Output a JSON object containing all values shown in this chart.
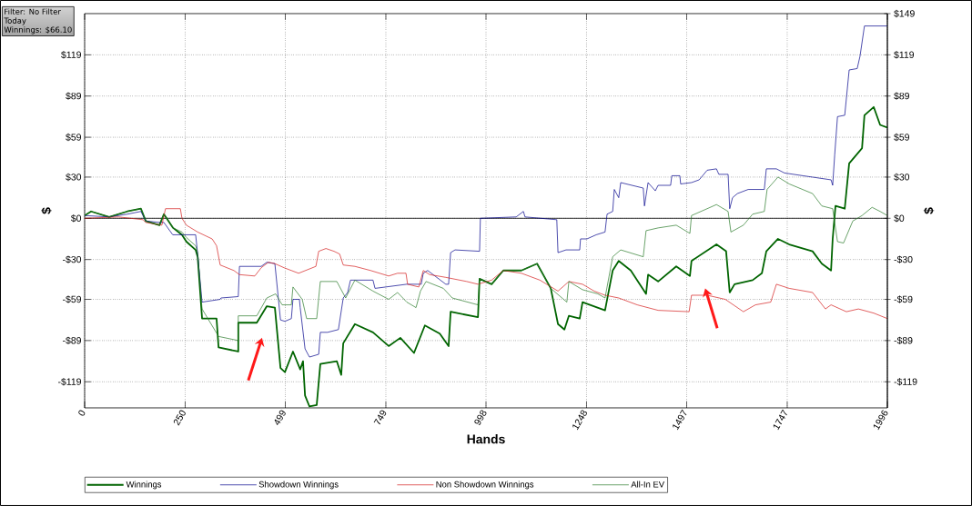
{
  "chart_data": {
    "type": "line",
    "xlabel": "Hands",
    "ylabel": "$",
    "y2label": "$",
    "annotations": [
      "Filter: No Filter",
      "Today",
      "Winnings: $66.10"
    ],
    "xlim": [
      0,
      1996
    ],
    "xticks": [
      0,
      250,
      499,
      749,
      998,
      1248,
      1497,
      1747,
      1996
    ],
    "ylim": [
      -138,
      149
    ],
    "yticks": [
      {
        "value": -119,
        "label": "-$119"
      },
      {
        "value": -89,
        "label": "-$89"
      },
      {
        "value": -59,
        "label": "-$59"
      },
      {
        "value": -30,
        "label": "-$30"
      },
      {
        "value": 0,
        "label": "$0"
      },
      {
        "value": 30,
        "label": "$30"
      },
      {
        "value": 59,
        "label": "$59"
      },
      {
        "value": 89,
        "label": "$89"
      },
      {
        "value": 119,
        "label": "$119"
      }
    ],
    "y2lim": [
      -138,
      149
    ],
    "y2ticks": [
      {
        "value": -119,
        "label": "-$119"
      },
      {
        "value": -89,
        "label": "-$89"
      },
      {
        "value": -59,
        "label": "-$59"
      },
      {
        "value": -30,
        "label": "-$30"
      },
      {
        "value": 0,
        "label": "$0"
      },
      {
        "value": 30,
        "label": "$30"
      },
      {
        "value": 59,
        "label": "$59"
      },
      {
        "value": 89,
        "label": "$89"
      },
      {
        "value": 119,
        "label": "$119"
      },
      {
        "value": 149,
        "label": "$149"
      }
    ],
    "grid": true,
    "legend": "bottom",
    "ref_lines": [
      {
        "axis": "y",
        "value": 0,
        "color": "#000000"
      }
    ],
    "series": [
      {
        "name": "Winnings",
        "color": "#006400",
        "x": [
          0,
          16,
          61,
          106,
          140,
          152,
          186,
          197,
          220,
          242,
          253,
          276,
          281,
          292,
          328,
          333,
          382,
          382,
          428,
          453,
          473,
          487,
          498,
          518,
          536,
          543,
          548,
          559,
          577,
          586,
          627,
          638,
          643,
          672,
          717,
          756,
          785,
          819,
          846,
          883,
          905,
          910,
          978,
          982,
          1012,
          1041,
          1086,
          1125,
          1159,
          1177,
          1193,
          1204,
          1231,
          1238,
          1294,
          1313,
          1328,
          1358,
          1396,
          1401,
          1426,
          1471,
          1505,
          1509,
          1571,
          1595,
          1604,
          1616,
          1661,
          1684,
          1695,
          1724,
          1752,
          1810,
          1833,
          1856,
          1860,
          1867,
          1890,
          1901,
          1933,
          1939,
          1962,
          1978,
          1996
        ],
        "values": [
          2,
          5,
          1,
          5,
          7,
          -2,
          -5,
          3,
          -7,
          -12,
          -17,
          -23,
          -28,
          -73,
          -73,
          -94,
          -97,
          -76,
          -76,
          -64,
          -65,
          -109,
          -112,
          -97,
          -110,
          -104,
          -129,
          -137,
          -136,
          -106,
          -104,
          -114,
          -91,
          -77,
          -83,
          -93,
          -87,
          -98,
          -78,
          -84,
          -93,
          -68,
          -72,
          -44,
          -48,
          -38,
          -38,
          -33,
          -51,
          -77,
          -81,
          -71,
          -73,
          -61,
          -67,
          -38,
          -31,
          -38,
          -55,
          -41,
          -46,
          -35,
          -42,
          -31,
          -19,
          -24,
          -54,
          -48,
          -45,
          -40,
          -24,
          -15,
          -19,
          -24,
          -33,
          -38,
          -15,
          9,
          7,
          40,
          51,
          75,
          81,
          68,
          66
        ]
      },
      {
        "name": "Showdown Winnings",
        "color": "#00008b",
        "x": [
          0,
          61,
          106,
          140,
          152,
          186,
          197,
          219,
          276,
          281,
          292,
          337,
          339,
          382,
          385,
          439,
          453,
          473,
          487,
          498,
          514,
          518,
          534,
          536,
          548,
          559,
          582,
          586,
          604,
          631,
          643,
          654,
          661,
          717,
          722,
          801,
          837,
          842,
          853,
          898,
          905,
          910,
          921,
          982,
          984,
          1073,
          1091,
          1095,
          1174,
          1177,
          1197,
          1231,
          1233,
          1249,
          1272,
          1294,
          1299,
          1313,
          1317,
          1328,
          1333,
          1389,
          1392,
          1401,
          1419,
          1426,
          1457,
          1460,
          1480,
          1482,
          1509,
          1528,
          1548,
          1571,
          1577,
          1600,
          1604,
          1611,
          1623,
          1650,
          1690,
          1695,
          1720,
          1740,
          1786,
          1856,
          1860,
          1865,
          1872,
          1890,
          1901,
          1921,
          1928,
          1939,
          1958,
          1978,
          1979,
          1996
        ],
        "values": [
          2,
          1,
          3,
          5,
          -2,
          -3,
          -3,
          -12,
          -12,
          -26,
          -61,
          -59,
          -58,
          -57,
          -35,
          -35,
          -32,
          -33,
          -74,
          -75,
          -73,
          -59,
          -59,
          -65,
          -95,
          -101,
          -99,
          -83,
          -83,
          -81,
          -58,
          -54,
          -45,
          -45,
          -51,
          -48,
          -48,
          -40,
          -38,
          -48,
          -48,
          -25,
          -23,
          -24,
          0,
          1,
          5,
          1,
          -1,
          -25,
          -23,
          -23,
          -15,
          -15,
          -12,
          -10,
          3,
          5,
          21,
          15,
          26,
          22,
          9,
          26,
          20,
          24,
          24,
          31,
          31,
          25,
          26,
          28,
          35,
          36,
          32,
          32,
          7,
          15,
          18,
          21,
          21,
          36,
          36,
          33,
          31,
          28,
          24,
          46,
          74,
          75,
          108,
          109,
          118,
          140,
          null,
          null,
          140,
          140
        ]
      },
      {
        "name": "Non Showdown Winnings",
        "color": "#d41c1c",
        "x": [
          0,
          84,
          145,
          152,
          192,
          201,
          238,
          242,
          253,
          281,
          317,
          328,
          337,
          371,
          385,
          423,
          439,
          457,
          473,
          496,
          514,
          532,
          575,
          582,
          600,
          620,
          634,
          643,
          672,
          711,
          756,
          778,
          799,
          803,
          831,
          842,
          858,
          898,
          950,
          978,
          1012,
          1041,
          1086,
          1132,
          1177,
          1204,
          1238,
          1267,
          1294,
          1328,
          1374,
          1426,
          1503,
          1509,
          1548,
          1593,
          1638,
          1668,
          1706,
          1720,
          1752,
          1810,
          1842,
          1856,
          1894,
          1924,
          1962,
          1996
        ],
        "values": [
          0,
          1,
          -1,
          -3,
          -5,
          7,
          7,
          0,
          -5,
          -10,
          -15,
          -20,
          -34,
          -38,
          -41,
          -42,
          -36,
          -32,
          -33,
          -36,
          -38,
          -40,
          -35,
          -24,
          -22,
          -24,
          -26,
          -34,
          -35,
          -38,
          -42,
          -40,
          -40,
          -48,
          -50,
          -38,
          -41,
          -43,
          -46,
          -48,
          -45,
          -38,
          -40,
          -45,
          -53,
          -46,
          -48,
          -53,
          -56,
          -58,
          -63,
          -67,
          -68,
          -56,
          -56,
          -59,
          -68,
          -63,
          -61,
          -48,
          -51,
          -54,
          -66,
          -63,
          -68,
          -66,
          -69,
          -73
        ]
      },
      {
        "name": "All-In EV",
        "color": "#2a7a2a",
        "x": [
          0,
          16,
          61,
          106,
          140,
          152,
          186,
          197,
          220,
          242,
          253,
          276,
          281,
          292,
          333,
          382,
          382,
          428,
          453,
          475,
          491,
          514,
          518,
          541,
          552,
          577,
          586,
          627,
          649,
          672,
          717,
          756,
          778,
          801,
          824,
          835,
          849,
          892,
          914,
          978,
          982,
          1012,
          1041,
          1086,
          1125,
          1159,
          1199,
          1204,
          1238,
          1276,
          1294,
          1313,
          1333,
          1389,
          1396,
          1426,
          1471,
          1505,
          1509,
          1548,
          1571,
          1600,
          1607,
          1638,
          1661,
          1690,
          1697,
          1724,
          1752,
          1810,
          1833,
          1860,
          1872,
          1887,
          1910,
          1933,
          1958,
          1978,
          1996
        ],
        "values": [
          2,
          5,
          1,
          5,
          7,
          -2,
          -5,
          3,
          -7,
          -10,
          -14,
          -20,
          -25,
          -66,
          -86,
          -89,
          -71,
          -71,
          -58,
          -55,
          -63,
          -63,
          -50,
          -59,
          -73,
          -73,
          -46,
          -46,
          -58,
          -45,
          -53,
          -59,
          -54,
          -61,
          -65,
          -53,
          -46,
          -51,
          -58,
          -63,
          -44,
          -48,
          -38,
          -38,
          -33,
          -51,
          -61,
          -46,
          -52,
          -55,
          -58,
          -28,
          -23,
          -28,
          -9,
          -7,
          -5,
          -11,
          2,
          7,
          10,
          5,
          -10,
          -5,
          3,
          5,
          21,
          30,
          25,
          18,
          9,
          7,
          -17,
          -18,
          -2,
          2,
          8,
          5,
          2
        ]
      }
    ]
  }
}
